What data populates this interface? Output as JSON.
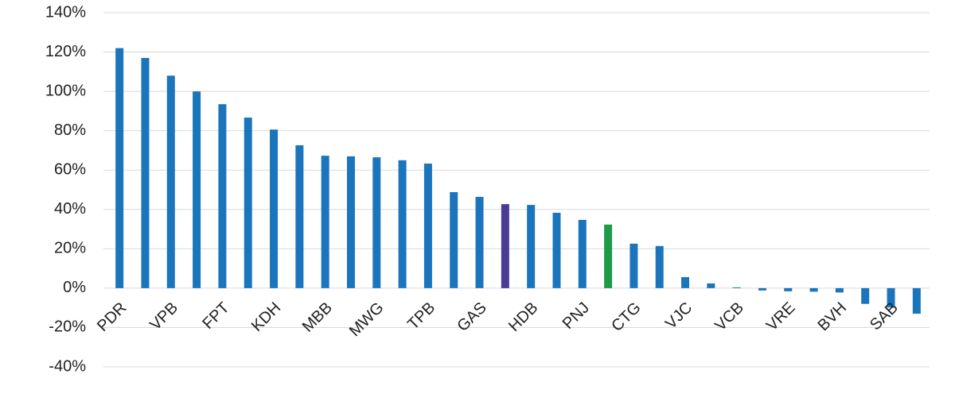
{
  "chart_data": {
    "type": "bar",
    "categories": [
      "PDR",
      null,
      "VPB",
      null,
      "FPT",
      null,
      "KDH",
      null,
      "MBB",
      null,
      "MWG",
      null,
      "TPB",
      null,
      "GAS",
      null,
      "HDB",
      null,
      "PNJ",
      null,
      "CTG",
      null,
      "VJC",
      null,
      "VCB",
      null,
      "VRE",
      null,
      "BVH",
      null,
      "SAB",
      null
    ],
    "values": [
      122,
      117,
      108,
      100,
      93.5,
      86.7,
      80.6,
      72.6,
      67.3,
      67,
      66.5,
      65,
      63.3,
      48.8,
      46.4,
      42.7,
      42.3,
      38.3,
      34.7,
      32.3,
      22.6,
      21.4,
      5.6,
      2.4,
      0.4,
      -1.2,
      -1.6,
      -1.8,
      -2.2,
      -8,
      -9.8,
      -13
    ],
    "colors": [
      "#1b75bc",
      "#1b75bc",
      "#1b75bc",
      "#1b75bc",
      "#1b75bc",
      "#1b75bc",
      "#1b75bc",
      "#1b75bc",
      "#1b75bc",
      "#1b75bc",
      "#1b75bc",
      "#1b75bc",
      "#1b75bc",
      "#1b75bc",
      "#1b75bc",
      "#4b3a96",
      "#1b75bc",
      "#1b75bc",
      "#1b75bc",
      "#1e9a48",
      "#1b75bc",
      "#1b75bc",
      "#1b75bc",
      "#1b75bc",
      "#1b75bc",
      "#1b75bc",
      "#1b75bc",
      "#1b75bc",
      "#1b75bc",
      "#1b75bc",
      "#1b75bc",
      "#1b75bc"
    ],
    "ylim": [
      -40,
      140
    ],
    "yticks": [
      {
        "value": -40,
        "label": "-40%"
      },
      {
        "value": -20,
        "label": "-20%"
      },
      {
        "value": 0,
        "label": "0%"
      },
      {
        "value": 20,
        "label": "20%"
      },
      {
        "value": 40,
        "label": "40%"
      },
      {
        "value": 60,
        "label": "60%"
      },
      {
        "value": 80,
        "label": "80%"
      },
      {
        "value": 100,
        "label": "100%"
      },
      {
        "value": 120,
        "label": "120%"
      },
      {
        "value": 140,
        "label": "140%"
      }
    ],
    "grid": true
  }
}
